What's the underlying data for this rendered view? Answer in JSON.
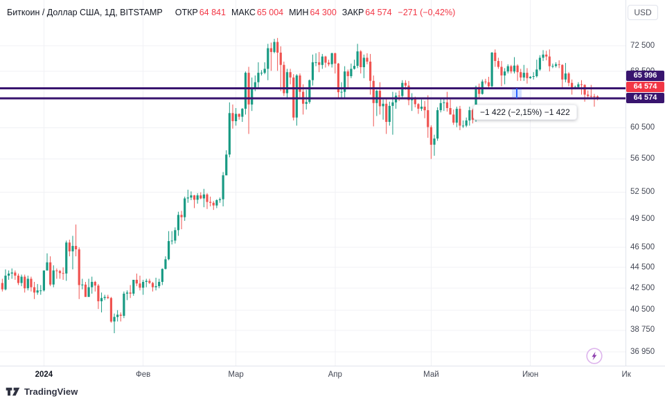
{
  "header": {
    "title": "Биткоин / Доллар США, 1Д, BITSTAMP",
    "open_label": "ОТКР",
    "open": "64 841",
    "high_label": "МАКС",
    "high": "65 004",
    "low_label": "МИН",
    "low": "64 300",
    "close_label": "ЗАКР",
    "close": "64 574",
    "change": "−271 (−0,42%)",
    "currency": "USD"
  },
  "footer": {
    "brand": "TradingView"
  },
  "colors": {
    "up": "#189a83",
    "down": "#ef5350",
    "grid": "#f0f1f5",
    "line_purple": "#38146e",
    "last_price_bg": "#f23645",
    "measure_band": "rgba(41,98,255,0.2)",
    "measure_line": "#2962ff",
    "text_dark": "#131722",
    "value_red": "#f23645"
  },
  "chart_data": {
    "type": "candlestick",
    "title": "Биткоин / Доллар США, 1Д, BITSTAMP",
    "interval": "1Д",
    "price_scale": "log",
    "ylim": [
      36000,
      74500
    ],
    "y_ticks": [
      {
        "label": "72 500",
        "price": 72500
      },
      {
        "label": "68 500",
        "price": 68500
      },
      {
        "label": "60 500",
        "price": 60500
      },
      {
        "label": "56 500",
        "price": 56500
      },
      {
        "label": "52 500",
        "price": 52500
      },
      {
        "label": "49 500",
        "price": 49500
      },
      {
        "label": "46 500",
        "price": 46500
      },
      {
        "label": "44 500",
        "price": 44500
      },
      {
        "label": "42 500",
        "price": 42500
      },
      {
        "label": "40 500",
        "price": 40500
      },
      {
        "label": "38 750",
        "price": 38750
      },
      {
        "label": "36 950",
        "price": 36950
      }
    ],
    "x_ticks": [
      {
        "label": "2024",
        "index": 13,
        "bold": true
      },
      {
        "label": "Фев",
        "index": 44
      },
      {
        "label": "Мар",
        "index": 73
      },
      {
        "label": "Апр",
        "index": 104
      },
      {
        "label": "Май",
        "index": 134
      },
      {
        "label": "Июн",
        "index": 165
      },
      {
        "label": "Ик",
        "index": 195
      }
    ],
    "price_lines": [
      {
        "label": "65 996",
        "price": 65996
      },
      {
        "label": "64 574",
        "price": 64574
      }
    ],
    "last_price": {
      "label": "64 574",
      "price": 64574,
      "direction": "down"
    },
    "measure": {
      "text": "−1 422 (−2,15%) −1 422",
      "from_price": 65996,
      "to_price": 64574
    },
    "ohlc": [
      [
        43000,
        43400,
        42200,
        42400
      ],
      [
        42400,
        44300,
        42300,
        43700
      ],
      [
        43700,
        44200,
        43300,
        43900
      ],
      [
        43900,
        44400,
        43400,
        44000
      ],
      [
        44000,
        44200,
        43300,
        43700
      ],
      [
        43700,
        43900,
        42800,
        43000
      ],
      [
        43000,
        43800,
        42700,
        43600
      ],
      [
        43600,
        43800,
        42100,
        42500
      ],
      [
        42500,
        43700,
        42300,
        43400
      ],
      [
        43400,
        43600,
        42200,
        42600
      ],
      [
        42600,
        43100,
        41500,
        42100
      ],
      [
        42100,
        42900,
        41900,
        42300
      ],
      [
        42300,
        42800,
        41900,
        42300
      ],
      [
        42300,
        44200,
        42200,
        44200
      ],
      [
        44200,
        45900,
        44200,
        45000
      ],
      [
        45000,
        45600,
        42700,
        42850
      ],
      [
        42850,
        44700,
        42600,
        44200
      ],
      [
        44200,
        44400,
        43400,
        44150
      ],
      [
        44150,
        44250,
        43400,
        43950
      ],
      [
        43950,
        44500,
        43300,
        43900
      ],
      [
        43900,
        47200,
        43200,
        47000
      ],
      [
        47000,
        47300,
        45600,
        46100
      ],
      [
        46100,
        47700,
        44300,
        46650
      ],
      [
        46650,
        48900,
        45600,
        46300
      ],
      [
        46300,
        46500,
        41500,
        42800
      ],
      [
        42800,
        43400,
        42400,
        42850
      ],
      [
        42850,
        43100,
        41700,
        41700
      ],
      [
        41700,
        43400,
        41700,
        42600
      ],
      [
        42600,
        43600,
        42000,
        43100
      ],
      [
        43100,
        43200,
        42200,
        42750
      ],
      [
        42750,
        42900,
        40600,
        41300
      ],
      [
        41300,
        42100,
        40300,
        41600
      ],
      [
        41600,
        41900,
        41400,
        41700
      ],
      [
        41700,
        41900,
        41500,
        41600
      ],
      [
        41600,
        41700,
        39400,
        39500
      ],
      [
        39500,
        40200,
        38500,
        39900
      ],
      [
        39900,
        40500,
        39500,
        40100
      ],
      [
        40100,
        40300,
        39500,
        40000
      ],
      [
        40000,
        42200,
        39800,
        42000
      ],
      [
        42000,
        42300,
        41400,
        42100
      ],
      [
        42100,
        42800,
        41600,
        42000
      ],
      [
        42000,
        43300,
        41800,
        43300
      ],
      [
        43300,
        43900,
        42700,
        42950
      ],
      [
        42950,
        43700,
        42300,
        42550
      ],
      [
        42550,
        43300,
        41900,
        43100
      ],
      [
        43100,
        43400,
        42600,
        43200
      ],
      [
        43200,
        43400,
        42900,
        43000
      ],
      [
        43000,
        43100,
        42200,
        42600
      ],
      [
        42600,
        43500,
        42300,
        42700
      ],
      [
        42700,
        43400,
        42500,
        43100
      ],
      [
        43100,
        44400,
        42800,
        44350
      ],
      [
        44350,
        45600,
        44300,
        45300
      ],
      [
        45300,
        48200,
        45200,
        47150
      ],
      [
        47150,
        48200,
        46800,
        47200
      ],
      [
        47200,
        48600,
        46900,
        48300
      ],
      [
        48300,
        50300,
        47700,
        49950
      ],
      [
        49950,
        50400,
        48400,
        49700
      ],
      [
        49700,
        52000,
        49300,
        51800
      ],
      [
        51800,
        52800,
        51300,
        51900
      ],
      [
        51900,
        52600,
        51600,
        52150
      ],
      [
        52150,
        52200,
        50700,
        51650
      ],
      [
        51650,
        52400,
        51200,
        52150
      ],
      [
        52150,
        52500,
        51700,
        51800
      ],
      [
        51800,
        52900,
        50800,
        52250
      ],
      [
        52250,
        52400,
        50600,
        51400
      ],
      [
        51400,
        52000,
        50900,
        51300
      ],
      [
        51300,
        51500,
        50500,
        51000
      ],
      [
        51000,
        51700,
        50700,
        51600
      ],
      [
        51600,
        51900,
        51300,
        51700
      ],
      [
        51700,
        54900,
        50900,
        54500
      ],
      [
        54500,
        57600,
        54500,
        57050
      ],
      [
        57050,
        64000,
        56700,
        62500
      ],
      [
        62500,
        63700,
        60400,
        61400
      ],
      [
        61400,
        63200,
        60800,
        62400
      ],
      [
        62400,
        62450,
        61600,
        62000
      ],
      [
        62000,
        63200,
        61300,
        63100
      ],
      [
        63100,
        68500,
        62300,
        68300
      ],
      [
        68300,
        69200,
        59700,
        63700
      ],
      [
        63700,
        67600,
        62800,
        66100
      ],
      [
        66100,
        67900,
        65600,
        66900
      ],
      [
        66900,
        69900,
        66100,
        68300
      ],
      [
        68300,
        68700,
        67900,
        68300
      ],
      [
        68300,
        69900,
        68100,
        68900
      ],
      [
        68900,
        72800,
        67200,
        72100
      ],
      [
        72100,
        73000,
        68600,
        71500
      ],
      [
        71500,
        73600,
        71300,
        73100
      ],
      [
        73100,
        73750,
        68600,
        71400
      ],
      [
        71400,
        72400,
        65600,
        69500
      ],
      [
        69500,
        70000,
        64900,
        65300
      ],
      [
        65300,
        68900,
        64500,
        68400
      ],
      [
        68400,
        68900,
        66600,
        67600
      ],
      [
        67600,
        68100,
        61500,
        61900
      ],
      [
        61900,
        68100,
        60800,
        67900
      ],
      [
        67900,
        68200,
        64600,
        65500
      ],
      [
        65500,
        66600,
        62300,
        63800
      ],
      [
        63800,
        65800,
        63000,
        64050
      ],
      [
        64050,
        67300,
        63800,
        67200
      ],
      [
        67200,
        71100,
        66400,
        69900
      ],
      [
        69900,
        71300,
        69300,
        69900
      ],
      [
        69900,
        71500,
        68400,
        69500
      ],
      [
        69500,
        71200,
        68900,
        70800
      ],
      [
        70800,
        70900,
        69100,
        69850
      ],
      [
        69850,
        70300,
        69300,
        69600
      ],
      [
        69600,
        71400,
        69100,
        71300
      ],
      [
        71300,
        71400,
        68200,
        69700
      ],
      [
        69700,
        69800,
        64600,
        65450
      ],
      [
        65450,
        66900,
        64500,
        65500
      ],
      [
        65500,
        69300,
        64500,
        68500
      ],
      [
        68500,
        68800,
        66000,
        67800
      ],
      [
        67800,
        69700,
        67500,
        68900
      ],
      [
        68900,
        70300,
        68800,
        69350
      ],
      [
        69350,
        72800,
        69000,
        71600
      ],
      [
        71600,
        71800,
        68200,
        69150
      ],
      [
        69150,
        71100,
        67500,
        70600
      ],
      [
        70600,
        71300,
        69600,
        70000
      ],
      [
        70000,
        71200,
        65100,
        67100
      ],
      [
        67100,
        67900,
        60700,
        63900
      ],
      [
        63900,
        65800,
        62100,
        65650
      ],
      [
        65650,
        66900,
        62300,
        63450
      ],
      [
        63450,
        64400,
        61600,
        63800
      ],
      [
        63800,
        64500,
        59700,
        61300
      ],
      [
        61300,
        64100,
        60800,
        63500
      ],
      [
        63500,
        65500,
        59600,
        64000
      ],
      [
        64000,
        65400,
        63100,
        64950
      ],
      [
        64950,
        65700,
        64200,
        64900
      ],
      [
        64900,
        67200,
        64500,
        66800
      ],
      [
        66800,
        67200,
        65800,
        66400
      ],
      [
        66400,
        67100,
        63600,
        64300
      ],
      [
        64300,
        65300,
        62800,
        64500
      ],
      [
        64500,
        64800,
        63300,
        63750
      ],
      [
        63750,
        63900,
        62400,
        63100
      ],
      [
        63100,
        64400,
        62800,
        63400
      ],
      [
        63400,
        64200,
        61800,
        62900
      ],
      [
        62900,
        65000,
        59200,
        60600
      ],
      [
        60600,
        60850,
        56500,
        58300
      ],
      [
        58300,
        59600,
        56900,
        59100
      ],
      [
        59100,
        63300,
        58800,
        62900
      ],
      [
        62900,
        64500,
        62600,
        63900
      ],
      [
        63900,
        64600,
        62800,
        64000
      ],
      [
        64000,
        65500,
        62700,
        63200
      ],
      [
        63200,
        64400,
        62300,
        62300
      ],
      [
        62300,
        63000,
        60900,
        61200
      ],
      [
        61200,
        63400,
        60600,
        63100
      ],
      [
        63100,
        63500,
        60200,
        60800
      ],
      [
        60800,
        61500,
        60500,
        60800
      ],
      [
        60800,
        61900,
        60600,
        61500
      ],
      [
        61500,
        63400,
        60800,
        62900
      ],
      [
        62900,
        63100,
        61100,
        61600
      ],
      [
        61600,
        66400,
        61300,
        66200
      ],
      [
        66200,
        66700,
        64600,
        65200
      ],
      [
        65200,
        67300,
        65100,
        67000
      ],
      [
        67000,
        67400,
        66600,
        66900
      ],
      [
        66900,
        67700,
        65900,
        66300
      ],
      [
        66300,
        71500,
        66100,
        71400
      ],
      [
        71400,
        71900,
        69200,
        70100
      ],
      [
        70100,
        70600,
        68900,
        69200
      ],
      [
        69200,
        70100,
        66300,
        67900
      ],
      [
        67900,
        69000,
        66600,
        68500
      ],
      [
        68500,
        69600,
        68200,
        69300
      ],
      [
        69300,
        69500,
        68200,
        68500
      ],
      [
        68500,
        70700,
        68200,
        69400
      ],
      [
        69400,
        69600,
        67100,
        68400
      ],
      [
        68400,
        68900,
        67100,
        67600
      ],
      [
        67600,
        69500,
        67100,
        68300
      ],
      [
        68300,
        69000,
        66700,
        67500
      ],
      [
        67500,
        67800,
        67400,
        67700
      ],
      [
        67700,
        68400,
        67300,
        67800
      ],
      [
        67800,
        70300,
        67600,
        68800
      ],
      [
        68800,
        71000,
        68600,
        70600
      ],
      [
        70600,
        71800,
        70100,
        71100
      ],
      [
        71100,
        71700,
        70200,
        70800
      ],
      [
        70800,
        71900,
        68500,
        69300
      ],
      [
        69300,
        69700,
        69000,
        69350
      ],
      [
        69350,
        69900,
        69100,
        69600
      ],
      [
        69600,
        70200,
        69000,
        69500
      ],
      [
        69500,
        69600,
        66100,
        67300
      ],
      [
        67300,
        69800,
        66900,
        68200
      ],
      [
        68200,
        68400,
        66300,
        66800
      ],
      [
        66800,
        67300,
        65100,
        65900
      ],
      [
        65900,
        66400,
        65850,
        66200
      ],
      [
        66200,
        66900,
        66000,
        66600
      ],
      [
        66600,
        67200,
        65100,
        66500
      ],
      [
        66500,
        66600,
        64100,
        65100
      ],
      [
        65100,
        65700,
        64700,
        64900
      ],
      [
        64900,
        66500,
        64600,
        64850
      ],
      [
        64850,
        65200,
        63400,
        64845
      ],
      [
        64841,
        65004,
        64300,
        64574
      ]
    ]
  }
}
